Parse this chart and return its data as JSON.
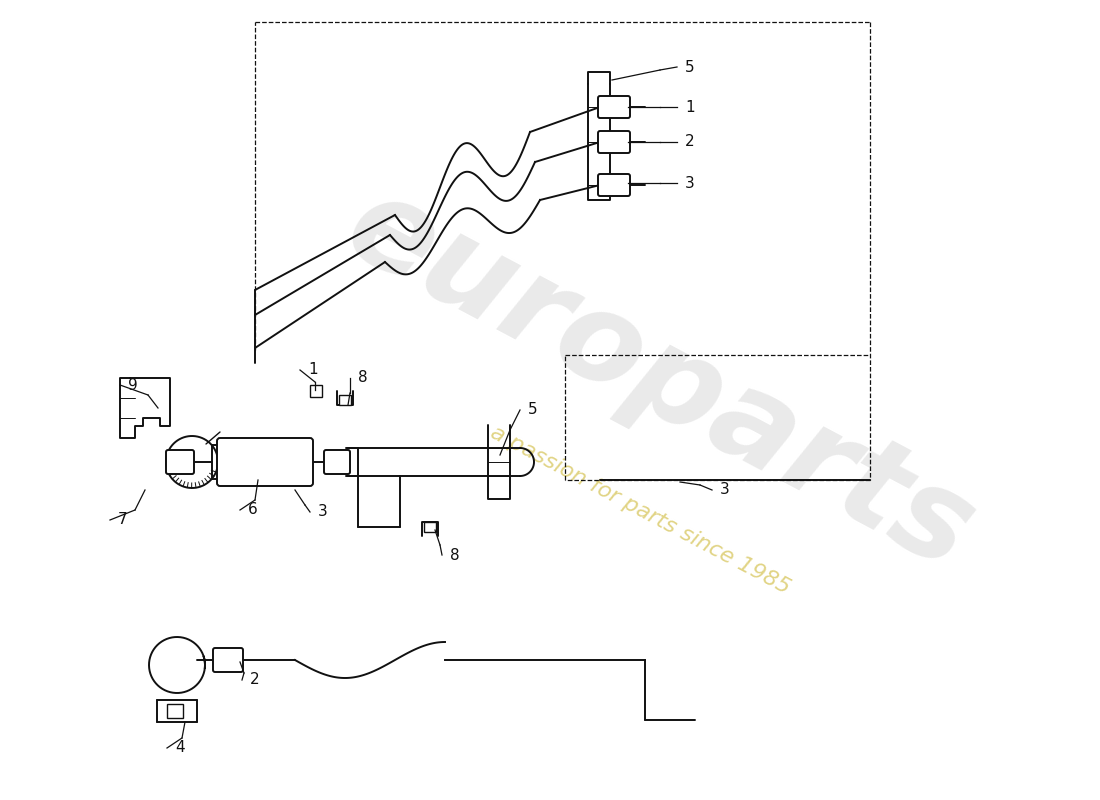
{
  "bg_color": "#ffffff",
  "line_color": "#111111",
  "figsize": [
    11.0,
    8.0
  ],
  "dpi": 100,
  "wm_color": "#c8c8c8",
  "wm_sub_color": "#c8b020"
}
